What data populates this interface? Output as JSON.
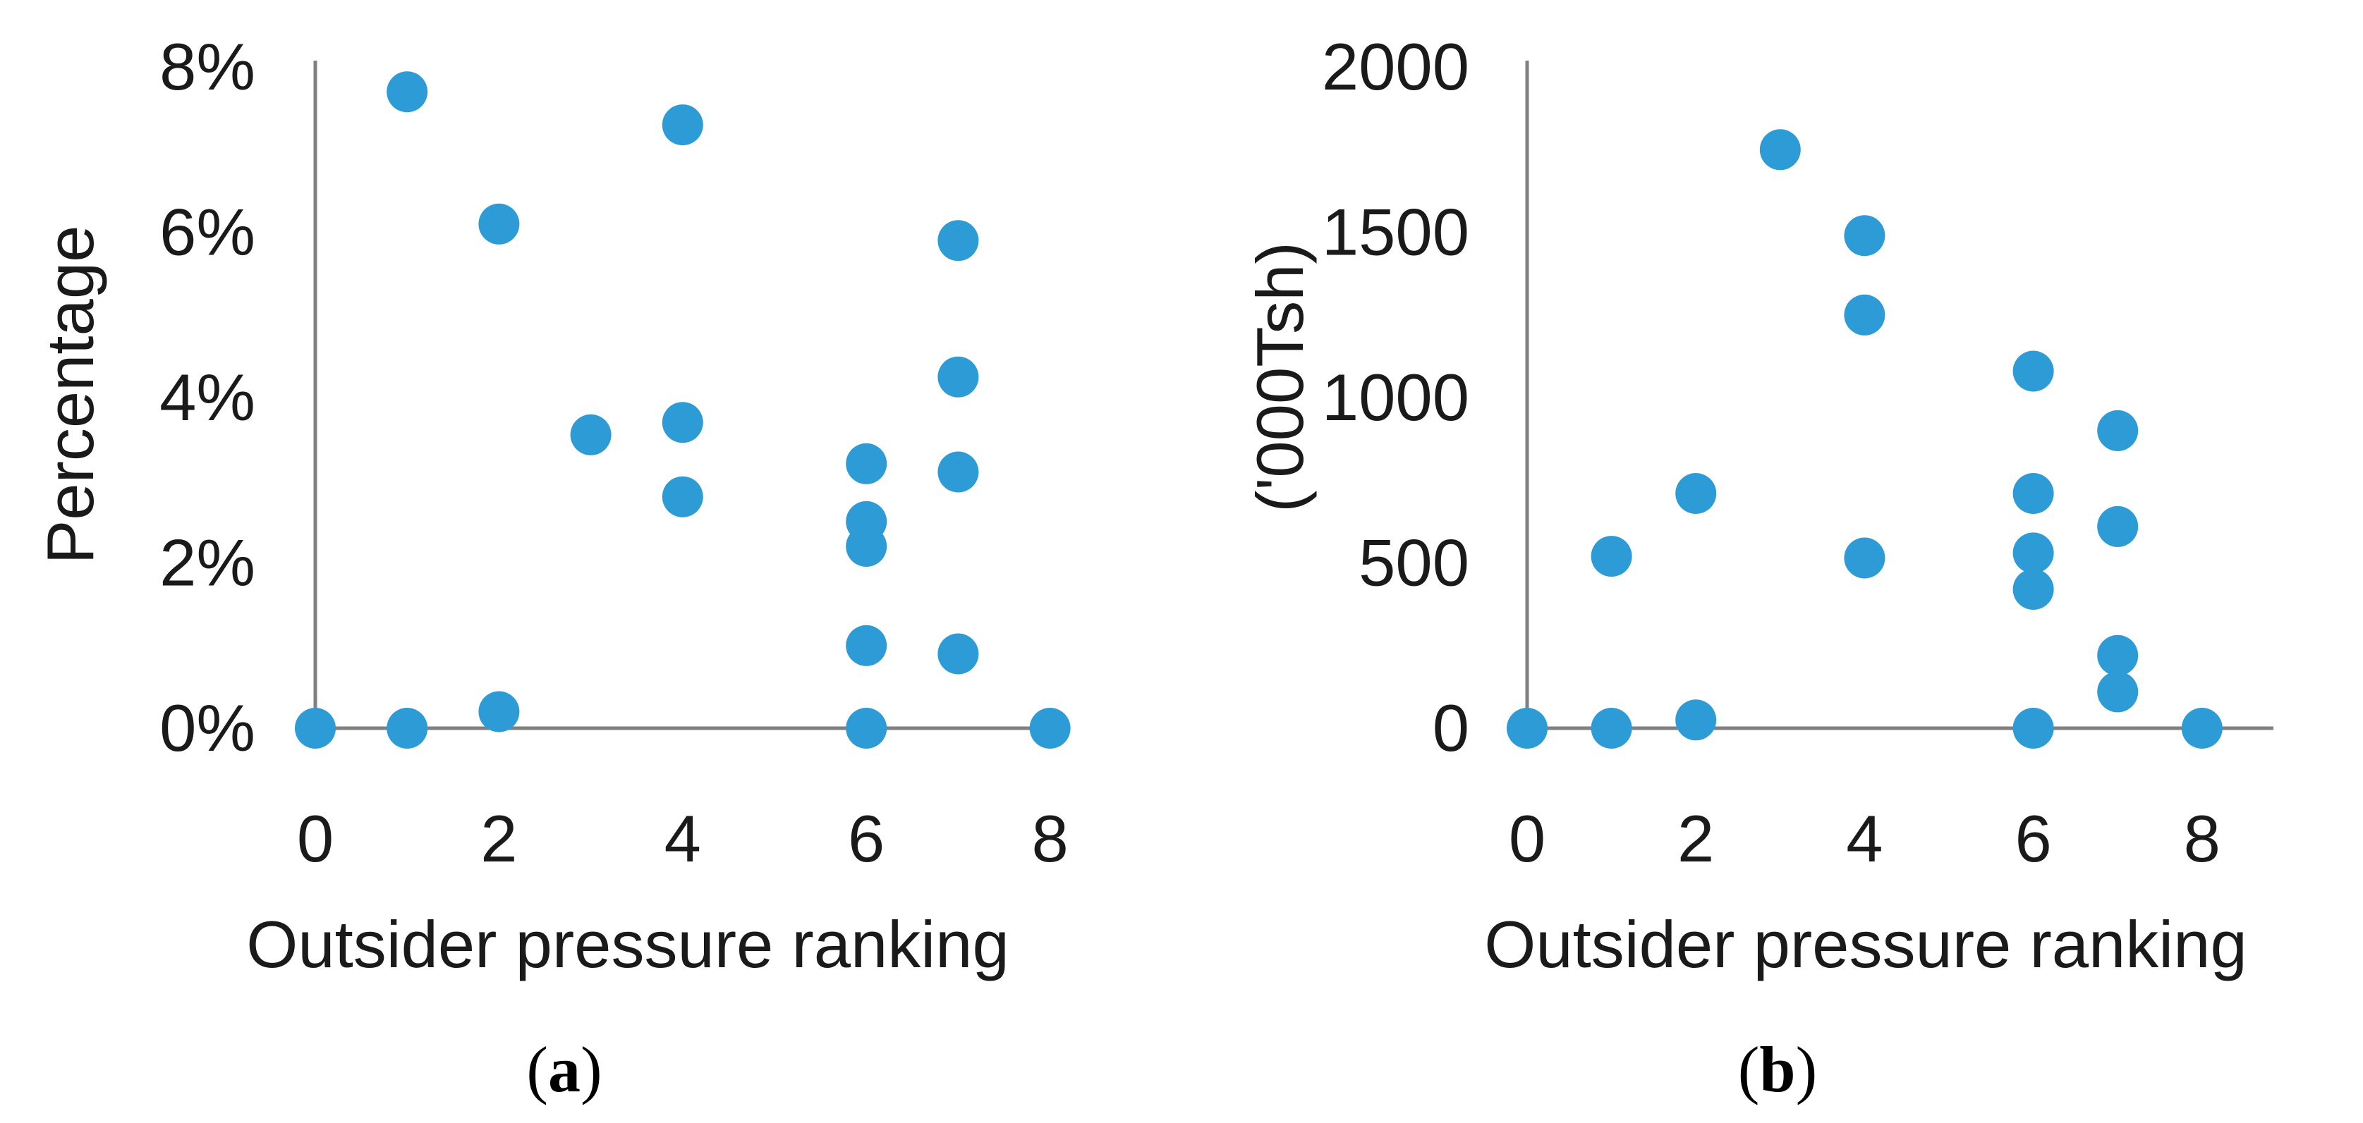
{
  "figure": {
    "background": "#ffffff",
    "panel_count": 2
  },
  "chart_data": [
    {
      "id": "a",
      "type": "scatter",
      "title": "",
      "xlabel": "Outsider pressure ranking",
      "ylabel": "Percentage",
      "xlim": [
        0,
        8.2
      ],
      "ylim": [
        0,
        8
      ],
      "grid": false,
      "legend": "none",
      "marker_color": "#2D9BD5",
      "axis_color": "#808080",
      "x_tick_values": [
        0,
        2,
        4,
        6,
        8
      ],
      "x_tick_labels": [
        "0",
        "2",
        "4",
        "6",
        "8"
      ],
      "y_tick_values": [
        0,
        2,
        4,
        6,
        8
      ],
      "y_tick_labels": [
        "0%",
        "2%",
        "4%",
        "6%",
        "8%"
      ],
      "panel_caption": {
        "open": "(",
        "letter": "a",
        "close": ")"
      },
      "points": [
        [
          0,
          0
        ],
        [
          1,
          7.7
        ],
        [
          1,
          0
        ],
        [
          2,
          6.1
        ],
        [
          2,
          0.2
        ],
        [
          3,
          3.55
        ],
        [
          4,
          7.3
        ],
        [
          4,
          3.7
        ],
        [
          4,
          2.8
        ],
        [
          6,
          3.2
        ],
        [
          6,
          2.5
        ],
        [
          6,
          2.2
        ],
        [
          6,
          1.0
        ],
        [
          6,
          0
        ],
        [
          7,
          5.9
        ],
        [
          7,
          4.25
        ],
        [
          7,
          3.1
        ],
        [
          7,
          0.9
        ],
        [
          8,
          0
        ]
      ]
    },
    {
      "id": "b",
      "type": "scatter",
      "title": "",
      "xlabel": "Outsider pressure ranking",
      "ylabel": "('000Tsh)",
      "xlim": [
        0,
        8.2
      ],
      "ylim": [
        0,
        2000
      ],
      "grid": false,
      "legend": "none",
      "marker_color": "#2D9BD5",
      "axis_color": "#808080",
      "x_tick_values": [
        0,
        2,
        4,
        6,
        8
      ],
      "x_tick_labels": [
        "0",
        "2",
        "4",
        "6",
        "8"
      ],
      "y_tick_values": [
        0,
        500,
        1000,
        1500,
        2000
      ],
      "y_tick_labels": [
        "0",
        "500",
        "1000",
        "1500",
        "2000"
      ],
      "panel_caption": {
        "open": "(",
        "letter": "b",
        "close": ")"
      },
      "points": [
        [
          0,
          0
        ],
        [
          1,
          520
        ],
        [
          1,
          0
        ],
        [
          2,
          710
        ],
        [
          2,
          25
        ],
        [
          3,
          1750
        ],
        [
          4,
          1490
        ],
        [
          4,
          1250
        ],
        [
          4,
          515
        ],
        [
          6,
          1080
        ],
        [
          6,
          710
        ],
        [
          6,
          530
        ],
        [
          6,
          420
        ],
        [
          6,
          0
        ],
        [
          7,
          900
        ],
        [
          7,
          610
        ],
        [
          7,
          220
        ],
        [
          7,
          110
        ],
        [
          8,
          0
        ]
      ]
    }
  ]
}
